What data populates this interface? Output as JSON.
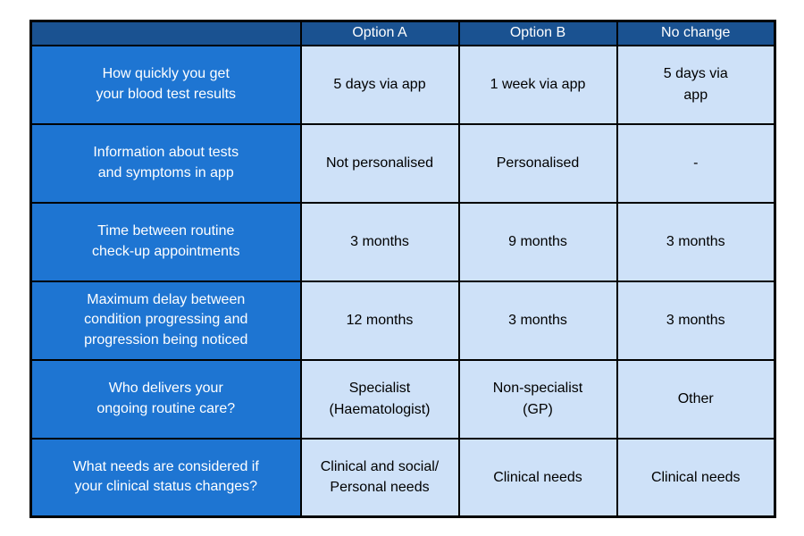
{
  "colors": {
    "header_bg": "#1A5291",
    "label_bg": "#1E75D2",
    "cell_bg": "#CEE1F8",
    "border_color": "#000000",
    "header_text": "#FFFFFF",
    "cell_text": "#000000",
    "page_bg": "#FFFFFF"
  },
  "table": {
    "columns": [
      "",
      "Option A",
      "Option B",
      "No change"
    ],
    "rows": [
      {
        "label": "How quickly you get\nyour blood test results",
        "values": [
          "5 days via app",
          "1 week via app",
          "5 days via\napp"
        ]
      },
      {
        "label": "Information about tests\nand symptoms in app",
        "values": [
          "Not personalised",
          "Personalised",
          "-"
        ]
      },
      {
        "label": "Time between routine\ncheck-up appointments",
        "values": [
          "3 months",
          "9 months",
          "3 months"
        ]
      },
      {
        "label": "Maximum delay between\ncondition progressing and\nprogression being noticed",
        "values": [
          "12 months",
          "3 months",
          "3 months"
        ]
      },
      {
        "label": "Who delivers your\nongoing routine care?",
        "values": [
          "Specialist\n(Haematologist)",
          "Non-specialist\n(GP)",
          "Other"
        ]
      },
      {
        "label": "What needs are considered if\nyour clinical status changes?",
        "values": [
          "Clinical and social/\nPersonal needs",
          "Clinical needs",
          "Clinical needs"
        ]
      }
    ]
  }
}
